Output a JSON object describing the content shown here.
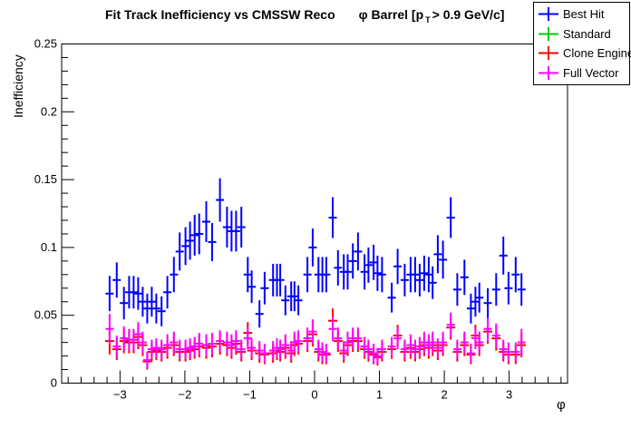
{
  "title": {
    "main": "Fit Track Inefficiency vs CMSSW Reco",
    "selection_prefix": "φ Barrel [p",
    "selection_sub": "T",
    "selection_suffix": "> 0.9 GeV/c]"
  },
  "legend": {
    "entries": [
      {
        "label": "Best Hit",
        "color": "#0000ff"
      },
      {
        "label": "Standard",
        "color": "#00cc00"
      },
      {
        "label": "Clone Engine",
        "color": "#ff0000"
      },
      {
        "label": "Full Vector",
        "color": "#ff00ff"
      }
    ]
  },
  "chart_data": {
    "type": "scatter",
    "title": "Fit Track Inefficiency vs CMSSW Reco    φ Barrel [p_T > 0.9 GeV/c]",
    "xlabel": "φ",
    "ylabel": "Inefficiency",
    "xlim": [
      -3.9,
      3.9
    ],
    "ylim": [
      0,
      0.25
    ],
    "grid": false,
    "legend_position": "top-right",
    "marker_style": "cross with vertical error bar",
    "axes": {
      "x_major_ticks": [
        -3,
        -2,
        -1,
        0,
        1,
        2,
        3
      ],
      "x_tick_labels": [
        "−3",
        "−2",
        "−1",
        "0",
        "1",
        "2",
        "3"
      ],
      "x_minor_step": 0.2,
      "y_major_ticks": [
        0,
        0.05,
        0.1,
        0.15,
        0.2,
        0.25
      ],
      "y_tick_labels": [
        "0",
        "0.05",
        "0.1",
        "0.15",
        "0.2",
        "0.25"
      ],
      "y_minor_step": 0.01
    },
    "x": [
      -3.16,
      -3.05,
      -2.94,
      -2.86,
      -2.79,
      -2.72,
      -2.65,
      -2.58,
      -2.51,
      -2.44,
      -2.36,
      -2.27,
      -2.17,
      -2.08,
      -1.99,
      -1.92,
      -1.85,
      -1.78,
      -1.67,
      -1.58,
      -1.46,
      -1.35,
      -1.28,
      -1.21,
      -1.13,
      -1.03,
      -0.97,
      -0.85,
      -0.77,
      -0.64,
      -0.58,
      -0.53,
      -0.45,
      -0.36,
      -0.31,
      -0.25,
      -0.11,
      -0.03,
      0.06,
      0.12,
      0.18,
      0.28,
      0.36,
      0.45,
      0.51,
      0.59,
      0.67,
      0.77,
      0.83,
      0.91,
      0.97,
      1.04,
      1.19,
      1.28,
      1.39,
      1.48,
      1.55,
      1.62,
      1.69,
      1.76,
      1.82,
      1.9,
      1.98,
      2.1,
      2.2,
      2.31,
      2.41,
      2.48,
      2.54,
      2.67,
      2.8,
      2.91,
      2.99,
      3.1,
      3.19
    ],
    "draw_order": [
      1,
      2,
      3,
      0
    ],
    "series": [
      {
        "name": "Best Hit",
        "color": "#0000ff",
        "values": [
          0.066,
          0.076,
          0.059,
          0.067,
          0.067,
          0.066,
          0.06,
          0.055,
          0.06,
          0.055,
          0.053,
          0.067,
          0.08,
          0.097,
          0.101,
          0.105,
          0.109,
          0.11,
          0.119,
          0.104,
          0.135,
          0.115,
          0.112,
          0.112,
          0.115,
          0.08,
          0.071,
          0.051,
          0.07,
          0.076,
          0.076,
          0.076,
          0.061,
          0.064,
          0.064,
          0.061,
          0.08,
          0.1,
          0.08,
          0.08,
          0.08,
          0.122,
          0.085,
          0.082,
          0.082,
          0.09,
          0.097,
          0.082,
          0.087,
          0.089,
          0.081,
          0.08,
          0.063,
          0.086,
          0.076,
          0.08,
          0.08,
          0.076,
          0.081,
          0.08,
          0.074,
          0.095,
          0.091,
          0.122,
          0.069,
          0.078,
          0.055,
          0.06,
          0.063,
          0.059,
          0.069,
          0.094,
          0.07,
          0.08,
          0.069
        ],
        "yerr": [
          0.013,
          0.013,
          0.012,
          0.012,
          0.012,
          0.012,
          0.011,
          0.011,
          0.011,
          0.011,
          0.011,
          0.012,
          0.013,
          0.014,
          0.014,
          0.014,
          0.015,
          0.015,
          0.015,
          0.014,
          0.016,
          0.015,
          0.015,
          0.015,
          0.015,
          0.013,
          0.012,
          0.01,
          0.012,
          0.012,
          0.012,
          0.012,
          0.011,
          0.011,
          0.011,
          0.011,
          0.013,
          0.014,
          0.013,
          0.013,
          0.013,
          0.015,
          0.013,
          0.013,
          0.013,
          0.013,
          0.014,
          0.013,
          0.013,
          0.013,
          0.013,
          0.013,
          0.011,
          0.013,
          0.012,
          0.013,
          0.013,
          0.012,
          0.013,
          0.013,
          0.012,
          0.014,
          0.014,
          0.015,
          0.012,
          0.013,
          0.011,
          0.011,
          0.011,
          0.011,
          0.012,
          0.014,
          0.012,
          0.013,
          0.012
        ]
      },
      {
        "name": "Standard",
        "color": "#00cc00",
        "values": [],
        "note": "no points visible: fully occluded by Clone Engine / Full Vector markers"
      },
      {
        "name": "Clone Engine",
        "color": "#ff0000",
        "note": "mostly occluded by Full Vector markers; edges peek out",
        "values": [
          0.031,
          0.025,
          0.031,
          0.03,
          0.03,
          0.034,
          0.028,
          0.016,
          0.023,
          0.024,
          0.023,
          0.026,
          0.028,
          0.023,
          0.023,
          0.024,
          0.025,
          0.027,
          0.026,
          0.027,
          0.029,
          0.028,
          0.026,
          0.029,
          0.023,
          0.037,
          0.024,
          0.022,
          0.021,
          0.022,
          0.024,
          0.023,
          0.026,
          0.022,
          0.028,
          0.029,
          0.031,
          0.036,
          0.023,
          0.021,
          0.021,
          0.046,
          0.031,
          0.022,
          0.028,
          0.031,
          0.031,
          0.025,
          0.023,
          0.021,
          0.019,
          0.023,
          0.025,
          0.035,
          0.023,
          0.026,
          0.023,
          0.025,
          0.028,
          0.026,
          0.028,
          0.024,
          0.028,
          0.041,
          0.023,
          0.028,
          0.021,
          0.035,
          0.028,
          0.038,
          0.033,
          0.023,
          0.021,
          0.021,
          0.028
        ],
        "yerr": [
          0.01,
          0.008,
          0.009,
          0.008,
          0.008,
          0.009,
          0.008,
          0.006,
          0.007,
          0.007,
          0.007,
          0.008,
          0.008,
          0.007,
          0.007,
          0.007,
          0.007,
          0.008,
          0.008,
          0.008,
          0.008,
          0.008,
          0.008,
          0.008,
          0.007,
          0.008,
          0.007,
          0.007,
          0.007,
          0.007,
          0.007,
          0.007,
          0.008,
          0.007,
          0.008,
          0.008,
          0.008,
          0.009,
          0.007,
          0.007,
          0.007,
          0.009,
          0.008,
          0.007,
          0.008,
          0.008,
          0.008,
          0.007,
          0.007,
          0.007,
          0.006,
          0.007,
          0.007,
          0.008,
          0.007,
          0.008,
          0.007,
          0.007,
          0.008,
          0.008,
          0.008,
          0.007,
          0.008,
          0.009,
          0.007,
          0.008,
          0.007,
          0.008,
          0.008,
          0.009,
          0.009,
          0.007,
          0.007,
          0.007,
          0.009
        ]
      },
      {
        "name": "Full Vector",
        "color": "#ff00ff",
        "values": [
          0.04,
          0.027,
          0.033,
          0.032,
          0.032,
          0.036,
          0.03,
          0.017,
          0.025,
          0.026,
          0.025,
          0.028,
          0.03,
          0.025,
          0.025,
          0.026,
          0.027,
          0.029,
          0.028,
          0.029,
          0.031,
          0.03,
          0.028,
          0.031,
          0.025,
          0.033,
          0.026,
          0.024,
          0.022,
          0.024,
          0.026,
          0.025,
          0.028,
          0.024,
          0.03,
          0.031,
          0.033,
          0.038,
          0.025,
          0.023,
          0.022,
          0.04,
          0.033,
          0.024,
          0.03,
          0.033,
          0.033,
          0.027,
          0.025,
          0.022,
          0.02,
          0.025,
          0.027,
          0.033,
          0.025,
          0.028,
          0.025,
          0.027,
          0.03,
          0.028,
          0.03,
          0.026,
          0.03,
          0.043,
          0.025,
          0.03,
          0.022,
          0.033,
          0.03,
          0.04,
          0.035,
          0.025,
          0.023,
          0.023,
          0.03
        ],
        "yerr": [
          0.011,
          0.008,
          0.009,
          0.008,
          0.008,
          0.009,
          0.008,
          0.006,
          0.007,
          0.007,
          0.007,
          0.008,
          0.008,
          0.007,
          0.007,
          0.007,
          0.007,
          0.008,
          0.008,
          0.008,
          0.008,
          0.008,
          0.008,
          0.008,
          0.007,
          0.008,
          0.007,
          0.007,
          0.007,
          0.007,
          0.007,
          0.007,
          0.008,
          0.007,
          0.008,
          0.008,
          0.008,
          0.009,
          0.007,
          0.007,
          0.007,
          0.009,
          0.008,
          0.007,
          0.008,
          0.008,
          0.008,
          0.007,
          0.007,
          0.007,
          0.006,
          0.007,
          0.007,
          0.008,
          0.007,
          0.008,
          0.007,
          0.007,
          0.008,
          0.008,
          0.008,
          0.007,
          0.008,
          0.009,
          0.007,
          0.008,
          0.007,
          0.008,
          0.008,
          0.009,
          0.009,
          0.007,
          0.007,
          0.007,
          0.01
        ]
      }
    ]
  }
}
